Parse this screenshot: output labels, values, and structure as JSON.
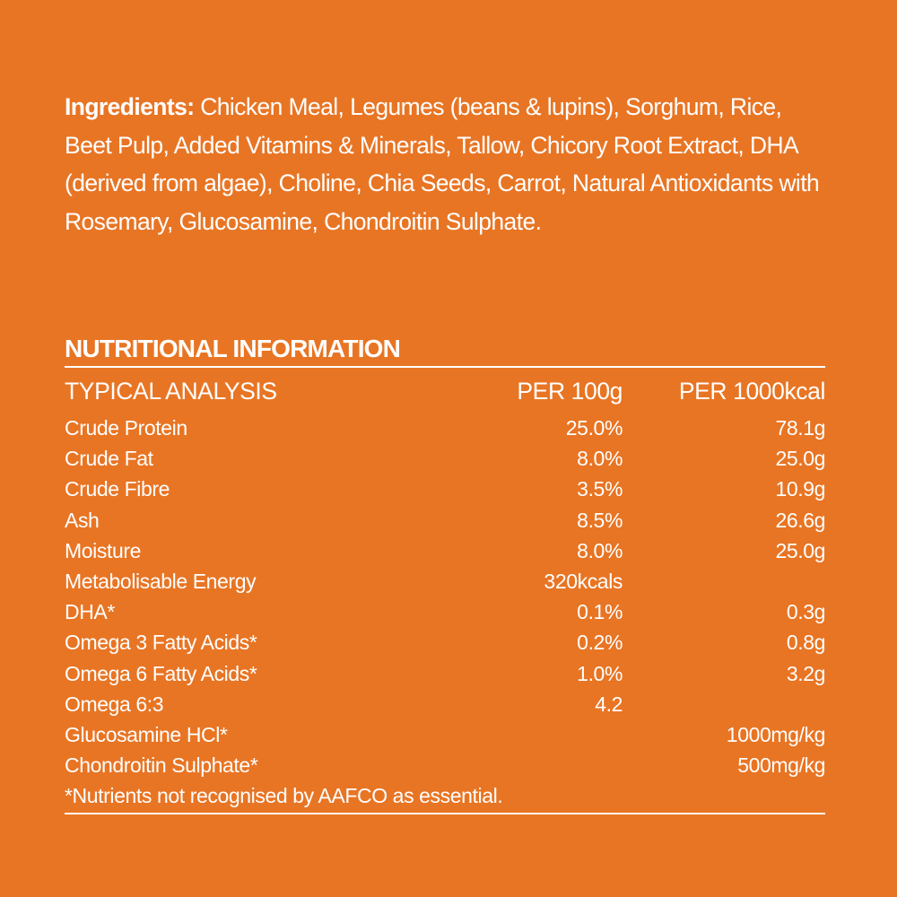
{
  "ingredients": {
    "label": "Ingredients:",
    "text": "Chicken Meal, Legumes (beans & lupins), Sorghum, Rice, Beet Pulp, Added Vitamins & Minerals, Tallow, Chicory Root Extract, DHA (derived from algae), Choline, Chia Seeds, Carrot, Natural Antioxidants with Rosemary, Glucosamine, Chondroitin Sulphate."
  },
  "nutrition": {
    "title": "NUTRITIONAL INFORMATION",
    "header": [
      "TYPICAL ANALYSIS",
      "PER 100g",
      "PER 1000kcal"
    ],
    "rows": [
      [
        "Crude Protein",
        "25.0%",
        "78.1g"
      ],
      [
        "Crude Fat",
        "8.0%",
        "25.0g"
      ],
      [
        "Crude Fibre",
        "3.5%",
        "10.9g"
      ],
      [
        "Ash",
        "8.5%",
        "26.6g"
      ],
      [
        "Moisture",
        "8.0%",
        "25.0g"
      ],
      [
        "Metabolisable Energy",
        "320kcals",
        null
      ],
      [
        "DHA*",
        "0.1%",
        "0.3g"
      ],
      [
        "Omega 3 Fatty Acids*",
        "0.2%",
        "0.8g"
      ],
      [
        "Omega 6 Fatty Acids*",
        "1.0%",
        "3.2g"
      ],
      [
        "Omega 6:3",
        "4.2",
        null
      ],
      [
        "Glucosamine HCl*",
        null,
        "1000mg/kg"
      ],
      [
        "Chondroitin Sulphate*",
        null,
        "500mg/kg"
      ]
    ],
    "footnote": "*Nutrients not recognised by AAFCO as essential."
  }
}
